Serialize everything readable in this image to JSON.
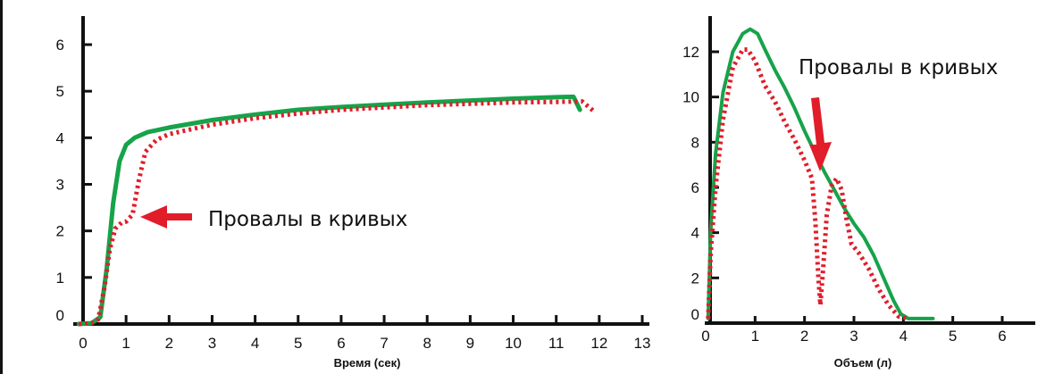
{
  "chart_data": [
    {
      "type": "line",
      "title": "",
      "xlabel": "Время (сек)",
      "ylabel": "",
      "xlim": [
        0,
        13
      ],
      "ylim": [
        0,
        6.5
      ],
      "x_ticks": [
        0,
        1,
        2,
        3,
        4,
        5,
        6,
        7,
        8,
        9,
        10,
        11,
        12,
        13
      ],
      "y_ticks": [
        0,
        1,
        2,
        3,
        4,
        5,
        6
      ],
      "series": [
        {
          "style": "solid",
          "color": "#16a34a",
          "points": [
            [
              -0.1,
              0
            ],
            [
              0.2,
              0.02
            ],
            [
              0.4,
              0.15
            ],
            [
              0.55,
              1.2
            ],
            [
              0.7,
              2.6
            ],
            [
              0.85,
              3.5
            ],
            [
              1.0,
              3.85
            ],
            [
              1.2,
              4.0
            ],
            [
              1.5,
              4.12
            ],
            [
              2,
              4.22
            ],
            [
              3,
              4.38
            ],
            [
              4,
              4.5
            ],
            [
              5,
              4.6
            ],
            [
              6,
              4.66
            ],
            [
              7,
              4.71
            ],
            [
              8,
              4.76
            ],
            [
              9,
              4.8
            ],
            [
              10,
              4.84
            ],
            [
              11,
              4.87
            ],
            [
              11.4,
              4.88
            ],
            [
              11.55,
              4.6
            ]
          ]
        },
        {
          "style": "dotted",
          "color": "#e11d2a",
          "points": [
            [
              -0.1,
              0
            ],
            [
              0.2,
              0.02
            ],
            [
              0.35,
              0.1
            ],
            [
              0.5,
              0.8
            ],
            [
              0.62,
              1.6
            ],
            [
              0.75,
              2.05
            ],
            [
              0.9,
              2.18
            ],
            [
              1.0,
              2.2
            ],
            [
              1.15,
              2.35
            ],
            [
              1.3,
              3.1
            ],
            [
              1.45,
              3.7
            ],
            [
              1.7,
              3.95
            ],
            [
              2,
              4.08
            ],
            [
              3,
              4.28
            ],
            [
              4,
              4.42
            ],
            [
              5,
              4.52
            ],
            [
              6,
              4.6
            ],
            [
              7,
              4.65
            ],
            [
              8,
              4.7
            ],
            [
              9,
              4.73
            ],
            [
              10,
              4.76
            ],
            [
              11,
              4.77
            ],
            [
              11.6,
              4.78
            ],
            [
              11.9,
              4.55
            ]
          ]
        }
      ],
      "annotation": {
        "text": "Провалы в кривых",
        "arrow_color": "#e11d2a"
      }
    },
    {
      "type": "line",
      "title": "",
      "xlabel": "Объем (л)",
      "ylabel": "",
      "xlim": [
        0,
        6.5
      ],
      "ylim": [
        0,
        13.5
      ],
      "x_ticks": [
        0,
        1,
        2,
        3,
        4,
        5,
        6
      ],
      "y_ticks": [
        0,
        2,
        4,
        6,
        8,
        10,
        12
      ],
      "series": [
        {
          "style": "solid",
          "color": "#16a34a",
          "points": [
            [
              0.05,
              0.2
            ],
            [
              0.1,
              4
            ],
            [
              0.2,
              7.5
            ],
            [
              0.35,
              10.2
            ],
            [
              0.55,
              12.0
            ],
            [
              0.75,
              12.8
            ],
            [
              0.9,
              13.0
            ],
            [
              1.05,
              12.8
            ],
            [
              1.2,
              12.1
            ],
            [
              1.4,
              11.2
            ],
            [
              1.6,
              10.4
            ],
            [
              1.8,
              9.5
            ],
            [
              2.0,
              8.5
            ],
            [
              2.2,
              7.6
            ],
            [
              2.4,
              6.7
            ],
            [
              2.6,
              5.9
            ],
            [
              2.8,
              5.1
            ],
            [
              3.0,
              4.4
            ],
            [
              3.2,
              3.8
            ],
            [
              3.4,
              3.0
            ],
            [
              3.6,
              2.0
            ],
            [
              3.8,
              1.0
            ],
            [
              3.95,
              0.4
            ],
            [
              4.1,
              0.2
            ],
            [
              4.6,
              0.2
            ]
          ]
        },
        {
          "style": "dotted",
          "color": "#e11d2a",
          "points": [
            [
              0.05,
              0.2
            ],
            [
              0.1,
              3
            ],
            [
              0.2,
              6
            ],
            [
              0.35,
              9
            ],
            [
              0.55,
              11.3
            ],
            [
              0.75,
              12.1
            ],
            [
              0.85,
              12.1
            ],
            [
              1.0,
              11.6
            ],
            [
              1.2,
              10.5
            ],
            [
              1.4,
              9.8
            ],
            [
              1.6,
              8.9
            ],
            [
              1.8,
              8.1
            ],
            [
              2.0,
              7.2
            ],
            [
              2.15,
              6.4
            ],
            [
              2.22,
              4.5
            ],
            [
              2.28,
              2.0
            ],
            [
              2.32,
              0.8
            ],
            [
              2.38,
              2.5
            ],
            [
              2.45,
              4.8
            ],
            [
              2.55,
              6.1
            ],
            [
              2.65,
              6.4
            ],
            [
              2.75,
              5.9
            ],
            [
              2.85,
              4.6
            ],
            [
              2.95,
              3.5
            ],
            [
              3.1,
              3.1
            ],
            [
              3.3,
              2.4
            ],
            [
              3.5,
              1.5
            ],
            [
              3.7,
              0.8
            ],
            [
              3.9,
              0.3
            ],
            [
              4.1,
              0.2
            ]
          ]
        }
      ],
      "annotation": {
        "text": "Провалы в кривых",
        "arrow_color": "#e11d2a"
      }
    }
  ]
}
